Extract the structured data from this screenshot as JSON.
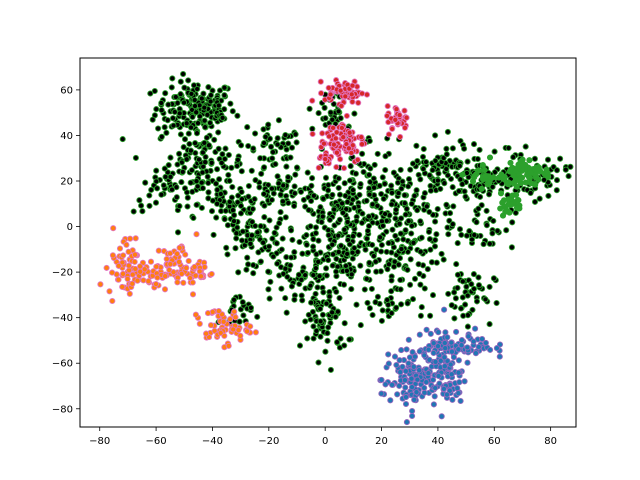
{
  "chart_data": {
    "type": "scatter",
    "title": "",
    "xlabel": "",
    "ylabel": "",
    "xlim": [
      -87,
      89
    ],
    "ylim": [
      -88,
      74
    ],
    "grid": false,
    "legend": "none",
    "x_ticks": [
      -80,
      -60,
      -40,
      -20,
      0,
      20,
      40,
      60,
      80
    ],
    "y_ticks": [
      -80,
      -60,
      -40,
      -20,
      0,
      20,
      40,
      60
    ],
    "x_tick_labels": [
      "−80",
      "−60",
      "−40",
      "−20",
      "0",
      "20",
      "40",
      "60",
      "80"
    ],
    "y_tick_labels": [
      "−80",
      "−60",
      "−40",
      "−20",
      "0",
      "20",
      "40",
      "60"
    ],
    "series": [
      {
        "name": "background",
        "color": "#000000",
        "edge_color": "#2ca02c",
        "clusters": [
          {
            "cx": -46,
            "cy": 52,
            "sx": 7,
            "sy": 6,
            "n": 170
          },
          {
            "cx": -44,
            "cy": 28,
            "sx": 8,
            "sy": 9,
            "n": 140
          },
          {
            "cx": -58,
            "cy": 14,
            "sx": 5,
            "sy": 4,
            "n": 30
          },
          {
            "cx": -33,
            "cy": 10,
            "sx": 6,
            "sy": 6,
            "n": 50
          },
          {
            "cx": -18,
            "cy": 32,
            "sx": 5,
            "sy": 6,
            "n": 50
          },
          {
            "cx": -14,
            "cy": 16,
            "sx": 7,
            "sy": 4,
            "n": 60
          },
          {
            "cx": -28,
            "cy": -4,
            "sx": 5,
            "sy": 4,
            "n": 40
          },
          {
            "cx": 5,
            "cy": 6,
            "sx": 10,
            "sy": 8,
            "n": 120
          },
          {
            "cx": 6,
            "cy": -12,
            "sx": 9,
            "sy": 8,
            "n": 120
          },
          {
            "cx": -10,
            "cy": -20,
            "sx": 8,
            "sy": 8,
            "n": 90
          },
          {
            "cx": 0,
            "cy": -42,
            "sx": 4,
            "sy": 8,
            "n": 70
          },
          {
            "cx": 14,
            "cy": 22,
            "sx": 8,
            "sy": 10,
            "n": 70
          },
          {
            "cx": 28,
            "cy": 6,
            "sx": 9,
            "sy": 8,
            "n": 100
          },
          {
            "cx": 30,
            "cy": -14,
            "sx": 6,
            "sy": 8,
            "n": 70
          },
          {
            "cx": 40,
            "cy": 22,
            "sx": 7,
            "sy": 6,
            "n": 60
          },
          {
            "cx": 46,
            "cy": 28,
            "sx": 6,
            "sy": 5,
            "n": 40
          },
          {
            "cx": 58,
            "cy": 20,
            "sx": 7,
            "sy": 5,
            "n": 80
          },
          {
            "cx": 74,
            "cy": 22,
            "sx": 6,
            "sy": 5,
            "n": 50
          },
          {
            "cx": 55,
            "cy": 0,
            "sx": 6,
            "sy": 5,
            "n": 40
          },
          {
            "cx": 50,
            "cy": -30,
            "sx": 5,
            "sy": 6,
            "n": 50
          },
          {
            "cx": 20,
            "cy": -34,
            "sx": 5,
            "sy": 5,
            "n": 30
          },
          {
            "cx": -32,
            "cy": -38,
            "sx": 3,
            "sy": 4,
            "n": 25
          },
          {
            "cx": -22,
            "cy": -4,
            "sx": 4,
            "sy": 4,
            "n": 25
          },
          {
            "cx": 2,
            "cy": 50,
            "sx": 4,
            "sy": 5,
            "n": 30
          }
        ]
      },
      {
        "name": "red",
        "color": "#d62728",
        "edge_color": "#e377c2",
        "clusters": [
          {
            "cx": 7,
            "cy": 59,
            "sx": 3.5,
            "sy": 2.5,
            "n": 55
          },
          {
            "cx": 6,
            "cy": 38,
            "sx": 4,
            "sy": 5,
            "n": 75
          },
          {
            "cx": 26,
            "cy": 47,
            "sx": 2,
            "sy": 3,
            "n": 35
          },
          {
            "cx": 1,
            "cy": 30,
            "sx": 2,
            "sy": 2,
            "n": 15
          }
        ]
      },
      {
        "name": "green",
        "color": "#2ca02c",
        "edge_color": "#2ca02c",
        "clusters": [
          {
            "cx": 72,
            "cy": 24,
            "sx": 4,
            "sy": 3,
            "n": 65
          },
          {
            "cx": 58,
            "cy": 22,
            "sx": 4,
            "sy": 2,
            "n": 30
          },
          {
            "cx": 65,
            "cy": 10,
            "sx": 2.5,
            "sy": 2.5,
            "n": 22
          }
        ]
      },
      {
        "name": "orange",
        "color": "#ff7f0e",
        "edge_color": "#e377c2",
        "clusters": [
          {
            "cx": -71,
            "cy": -16,
            "sx": 3,
            "sy": 7,
            "n": 50
          },
          {
            "cx": -63,
            "cy": -22,
            "sx": 6,
            "sy": 2.5,
            "n": 40
          },
          {
            "cx": -52,
            "cy": -17,
            "sx": 4,
            "sy": 5,
            "n": 55
          },
          {
            "cx": -44,
            "cy": -20,
            "sx": 2,
            "sy": 2,
            "n": 15
          },
          {
            "cx": -37,
            "cy": -44,
            "sx": 5,
            "sy": 4,
            "n": 55
          }
        ]
      },
      {
        "name": "blue",
        "color": "#1f77b4",
        "edge_color": "#9467bd",
        "clusters": [
          {
            "cx": 30,
            "cy": -68,
            "sx": 5,
            "sy": 6,
            "n": 100
          },
          {
            "cx": 40,
            "cy": -58,
            "sx": 6,
            "sy": 6,
            "n": 100
          },
          {
            "cx": 50,
            "cy": -52,
            "sx": 5,
            "sy": 3,
            "n": 50
          },
          {
            "cx": 43,
            "cy": -70,
            "sx": 3,
            "sy": 4,
            "n": 30
          }
        ]
      }
    ]
  }
}
